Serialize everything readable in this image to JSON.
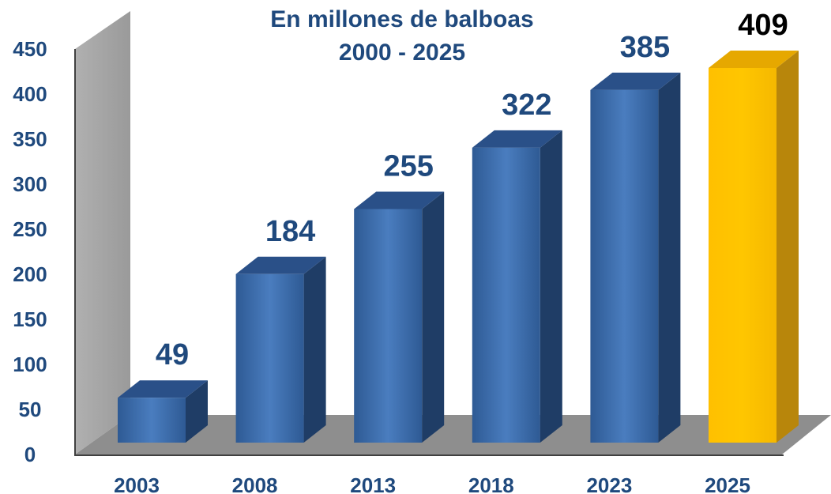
{
  "chart_data": {
    "type": "bar",
    "title": "En millones de balboas",
    "subtitle": "2000 - 2025",
    "categories": [
      "2003",
      "2008",
      "2013",
      "2018",
      "2023",
      "2025"
    ],
    "values": [
      49,
      184,
      255,
      322,
      385,
      409
    ],
    "data_labels": [
      "49",
      "184",
      "255",
      "322",
      "385",
      "409"
    ],
    "yticks": [
      "0",
      "50",
      "100",
      "150",
      "200",
      "250",
      "300",
      "350",
      "400",
      "450"
    ],
    "ylim": [
      0,
      450
    ],
    "xlabel": "",
    "ylabel": "",
    "grid": false,
    "legend": "none",
    "style": "3d-column",
    "colors": {
      "bar": "#3a6aa8",
      "bar_side": "#1f3d66",
      "bar_top": "#2a5088",
      "highlight_bar": "#ffc000",
      "highlight_side": "#b8860b",
      "highlight_top": "#e6a800",
      "text": "#1f497d",
      "highlight_label": "#000000",
      "wall": "#a6a6a6",
      "floor": "#8c8c8c"
    },
    "highlight_index": 5
  }
}
